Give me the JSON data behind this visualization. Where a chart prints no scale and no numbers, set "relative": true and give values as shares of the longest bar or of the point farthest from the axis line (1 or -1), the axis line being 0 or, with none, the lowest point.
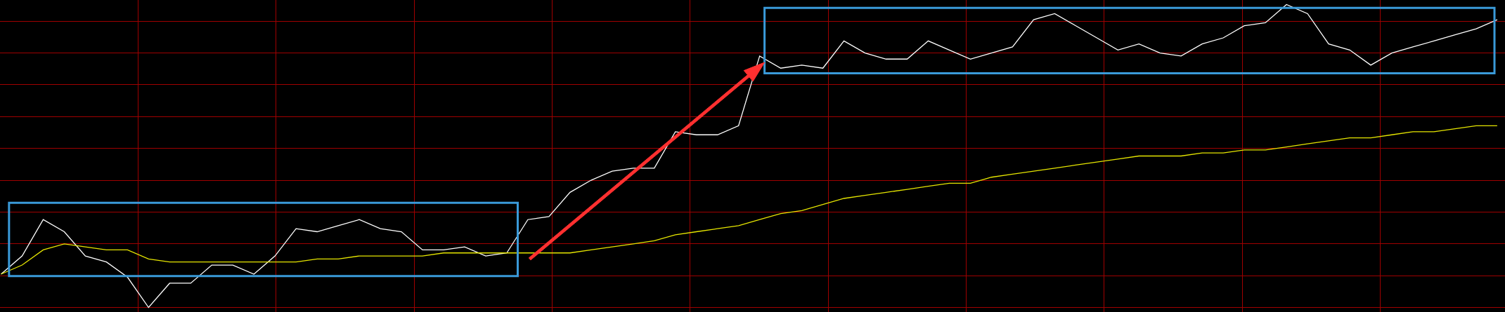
{
  "chart_data": {
    "type": "line",
    "relative": true,
    "grid": true,
    "categories": [
      null,
      null,
      null,
      null,
      null,
      null,
      null,
      null,
      null,
      null,
      null,
      null,
      null,
      null,
      null,
      null,
      null,
      null,
      null,
      null,
      null,
      null,
      null,
      null,
      null,
      null,
      null,
      null,
      null,
      null,
      null,
      null,
      null,
      null,
      null,
      null,
      null,
      null,
      null,
      null,
      null,
      null,
      null,
      null,
      null,
      null,
      null,
      null,
      null,
      null,
      null,
      null,
      null,
      null,
      null,
      null,
      null,
      null,
      null,
      null,
      null,
      null,
      null,
      null,
      null,
      null,
      null,
      null,
      null,
      null,
      null,
      null
    ],
    "series": [
      {
        "color": "#ffffff",
        "values": [
          0.11,
          0.17,
          0.29,
          0.25,
          0.17,
          0.15,
          0.1,
          0.0,
          0.08,
          0.08,
          0.14,
          0.14,
          0.11,
          0.17,
          0.26,
          0.25,
          0.27,
          0.29,
          0.26,
          0.25,
          0.19,
          0.19,
          0.2,
          0.17,
          0.18,
          0.29,
          0.3,
          0.38,
          0.42,
          0.45,
          0.46,
          0.46,
          0.58,
          0.57,
          0.57,
          0.6,
          0.83,
          0.79,
          0.8,
          0.79,
          0.88,
          0.84,
          0.82,
          0.82,
          0.88,
          0.85,
          0.82,
          0.84,
          0.86,
          0.95,
          0.97,
          0.93,
          0.89,
          0.85,
          0.87,
          0.84,
          0.83,
          0.87,
          0.89,
          0.93,
          0.94,
          1.0,
          0.97,
          0.87,
          0.85,
          0.8,
          0.84,
          0.86,
          0.88,
          0.9,
          0.92,
          0.95
        ]
      },
      {
        "color": "#e6e600",
        "values": [
          0.11,
          0.14,
          0.19,
          0.21,
          0.2,
          0.19,
          0.19,
          0.16,
          0.15,
          0.15,
          0.15,
          0.15,
          0.15,
          0.15,
          0.15,
          0.16,
          0.16,
          0.17,
          0.17,
          0.17,
          0.17,
          0.18,
          0.18,
          0.18,
          0.18,
          0.18,
          0.18,
          0.18,
          0.19,
          0.2,
          0.21,
          0.22,
          0.24,
          0.25,
          0.26,
          0.27,
          0.29,
          0.31,
          0.32,
          0.34,
          0.36,
          0.37,
          0.38,
          0.39,
          0.4,
          0.41,
          0.41,
          0.43,
          0.44,
          0.45,
          0.46,
          0.47,
          0.48,
          0.49,
          0.5,
          0.5,
          0.5,
          0.51,
          0.51,
          0.52,
          0.52,
          0.53,
          0.54,
          0.55,
          0.56,
          0.56,
          0.57,
          0.58,
          0.58,
          0.59,
          0.6,
          0.6
        ]
      }
    ]
  }
}
